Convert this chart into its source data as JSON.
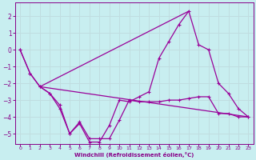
{
  "background_color": "#c8eef0",
  "grid_color": "#c0dde0",
  "line_color": "#990099",
  "marker": "+",
  "xlabel": "Windchill (Refroidissement éolien,°C)",
  "xlabel_color": "#880088",
  "tick_color": "#880088",
  "spine_color": "#880088",
  "xlim": [
    -0.5,
    23.5
  ],
  "ylim": [
    -5.6,
    2.8
  ],
  "yticks": [
    -5,
    -4,
    -3,
    -2,
    -1,
    0,
    1,
    2
  ],
  "xticks": [
    0,
    1,
    2,
    3,
    4,
    5,
    6,
    7,
    8,
    9,
    10,
    11,
    12,
    13,
    14,
    15,
    16,
    17,
    18,
    19,
    20,
    21,
    22,
    23
  ],
  "line1_x": [
    0,
    1,
    2,
    3,
    4,
    5,
    6,
    7,
    8,
    9,
    10,
    11,
    12,
    13,
    14,
    15,
    16,
    17,
    18,
    19,
    20,
    21,
    22,
    23
  ],
  "line1_y": [
    0.0,
    -1.4,
    -2.2,
    -2.6,
    -3.3,
    -5.0,
    -4.3,
    -5.3,
    -5.3,
    -5.3,
    -4.2,
    -3.0,
    -3.1,
    -3.1,
    -3.1,
    -3.0,
    -3.0,
    -2.9,
    -2.8,
    -2.8,
    -3.8,
    -3.8,
    -4.0,
    -4.0
  ],
  "line2_x": [
    0,
    1,
    2,
    3,
    4,
    5,
    6,
    7,
    8,
    9,
    10,
    11,
    12,
    13,
    14,
    15,
    16,
    17,
    18,
    19,
    20,
    21,
    22,
    23
  ],
  "line2_y": [
    0.0,
    -1.4,
    -2.2,
    -2.6,
    -3.5,
    -5.0,
    -4.4,
    -5.5,
    -5.5,
    -4.5,
    -3.0,
    -3.1,
    -2.8,
    -2.5,
    -0.5,
    0.5,
    1.5,
    2.3,
    0.3,
    0.0,
    -2.0,
    -2.6,
    -3.5,
    -4.0
  ],
  "line3_x": [
    2,
    23
  ],
  "line3_y": [
    -2.2,
    -4.0
  ],
  "line4_x": [
    2,
    17
  ],
  "line4_y": [
    -2.2,
    2.3
  ]
}
